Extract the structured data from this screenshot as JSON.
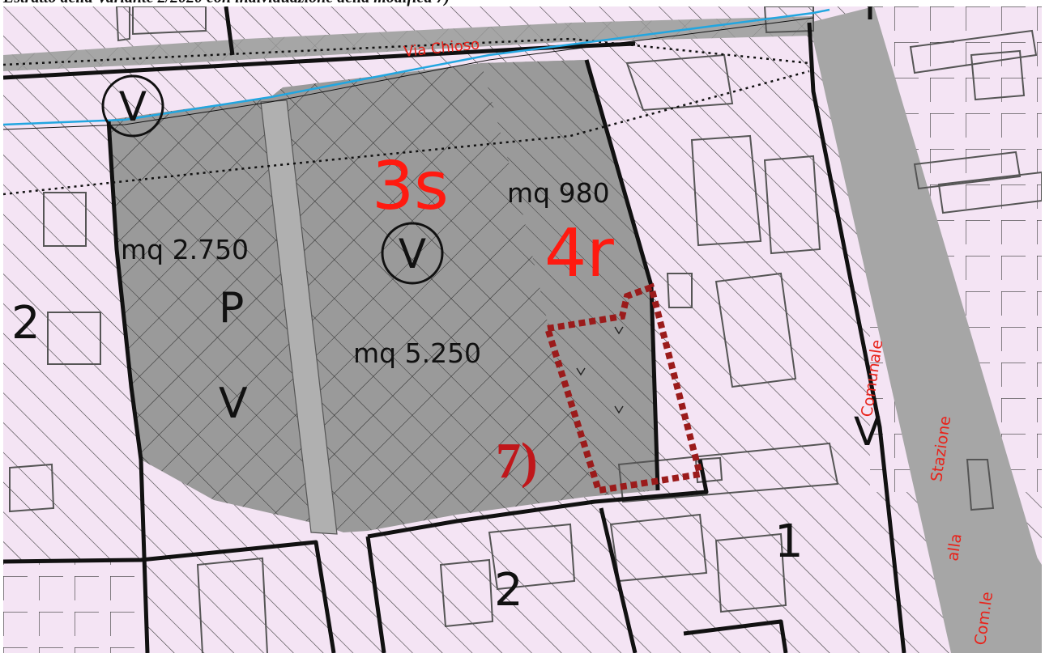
{
  "caption": "Estratto della Variante 2/2020 con individuazione della modifica 7)",
  "colors": {
    "residential_fill": "#f4e4f4",
    "green_area_fill": "#9a9a9a",
    "road_fill": "#a6a6a6",
    "watercourse": "#2aa8e0",
    "annotation_red": "#ff1a10",
    "modification_outline": "#9b1b1b"
  },
  "labels": {
    "street_via_chioso": "Via Chioso",
    "street_comunale": "Comunale",
    "street_stazione": "Stazione",
    "street_alla": "alla",
    "street_comle": "Com.le",
    "zone_3s": "3s",
    "zone_4r": "4r",
    "area_980": "mq 980",
    "area_2750": "mq 2.750",
    "area_5250": "mq 5.250",
    "letter_p": "P",
    "letter_v": "V",
    "letter_v_road": "V",
    "circle_v_1": "V",
    "circle_v_2": "V",
    "zone_2_left": "2",
    "zone_2_bottom": "2",
    "zone_1": "1",
    "modification_id": "7)"
  }
}
